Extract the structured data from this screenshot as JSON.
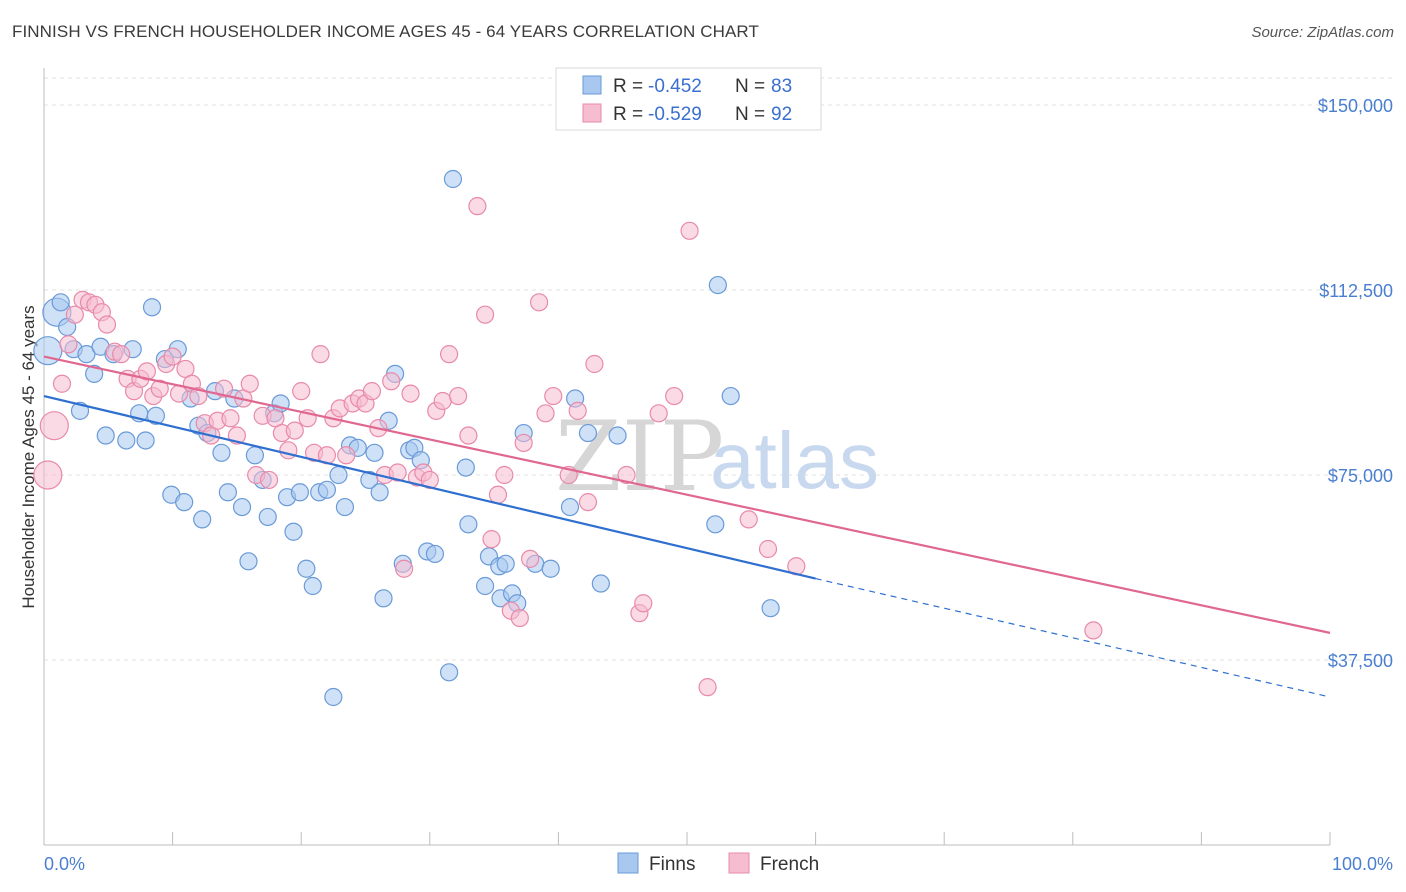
{
  "title": "FINNISH VS FRENCH HOUSEHOLDER INCOME AGES 45 - 64 YEARS CORRELATION CHART",
  "source": "Source: ZipAtlas.com",
  "watermark": {
    "zip": "ZIP",
    "atlas": "atlas"
  },
  "legend": {
    "r_label": "R =",
    "n_label": "N =",
    "rows": [
      {
        "r": "-0.452",
        "n": "83"
      },
      {
        "r": "-0.529",
        "n": "92"
      }
    ]
  },
  "colors": {
    "finns_fill": "#a8c8f0",
    "finns_stroke": "#6a9ad8",
    "finns_line": "#2f6fd0",
    "french_fill": "#f6bcd0",
    "french_stroke": "#e88aaa",
    "french_line": "#e06890",
    "grid": "#e0e0e0",
    "tick_label": "#4a7fd0"
  },
  "chart_data": {
    "type": "scatter",
    "title": "FINNISH VS FRENCH HOUSEHOLDER INCOME AGES 45 - 64 YEARS CORRELATION CHART",
    "xlabel": "",
    "ylabel": "Householder Income Ages 45 - 64 years",
    "xlim": [
      0,
      100
    ],
    "ylim": [
      0,
      157500
    ],
    "x_tick_labels": [
      "0.0%",
      "100.0%"
    ],
    "y_ticks": [
      37500,
      75000,
      112500,
      150000
    ],
    "y_tick_labels": [
      "$37,500",
      "$75,000",
      "$112,500",
      "$150,000"
    ],
    "grid": true,
    "legend_position": "bottom",
    "series": [
      {
        "name": "Finns",
        "r": -0.452,
        "n": 83,
        "trend": {
          "x": [
            0,
            60,
            100
          ],
          "y": [
            91000,
            54000,
            30000
          ],
          "solid_until": 60
        },
        "points": [
          [
            0.3,
            100200
          ],
          [
            1.0,
            108000
          ],
          [
            1.3,
            110000
          ],
          [
            1.8,
            105000
          ],
          [
            2.3,
            100500
          ],
          [
            2.8,
            88000
          ],
          [
            3.3,
            99500
          ],
          [
            3.9,
            95500
          ],
          [
            4.4,
            101000
          ],
          [
            4.8,
            83000
          ],
          [
            5.4,
            99500
          ],
          [
            6.4,
            82000
          ],
          [
            6.9,
            100500
          ],
          [
            7.4,
            87500
          ],
          [
            7.9,
            82000
          ],
          [
            8.4,
            109000
          ],
          [
            8.7,
            87000
          ],
          [
            9.4,
            98500
          ],
          [
            9.9,
            71000
          ],
          [
            10.4,
            100500
          ],
          [
            10.9,
            69500
          ],
          [
            11.4,
            90500
          ],
          [
            12.0,
            85000
          ],
          [
            12.3,
            66000
          ],
          [
            12.7,
            83500
          ],
          [
            13.3,
            92000
          ],
          [
            13.8,
            79500
          ],
          [
            14.3,
            71500
          ],
          [
            14.8,
            90500
          ],
          [
            15.4,
            68500
          ],
          [
            15.9,
            57500
          ],
          [
            16.4,
            79000
          ],
          [
            17.0,
            74000
          ],
          [
            17.4,
            66500
          ],
          [
            17.9,
            87500
          ],
          [
            18.4,
            89500
          ],
          [
            18.9,
            70500
          ],
          [
            19.4,
            63500
          ],
          [
            19.9,
            71500
          ],
          [
            20.4,
            56000
          ],
          [
            20.9,
            52500
          ],
          [
            21.4,
            71500
          ],
          [
            22.0,
            72000
          ],
          [
            22.5,
            30000
          ],
          [
            22.9,
            75000
          ],
          [
            23.4,
            68500
          ],
          [
            23.8,
            81000
          ],
          [
            24.4,
            80500
          ],
          [
            25.3,
            74000
          ],
          [
            25.7,
            79500
          ],
          [
            26.1,
            71500
          ],
          [
            26.4,
            50000
          ],
          [
            26.8,
            86000
          ],
          [
            27.3,
            95500
          ],
          [
            27.9,
            57000
          ],
          [
            28.4,
            80000
          ],
          [
            28.8,
            80500
          ],
          [
            29.3,
            78000
          ],
          [
            29.8,
            59500
          ],
          [
            30.4,
            59000
          ],
          [
            31.5,
            35000
          ],
          [
            31.8,
            135000
          ],
          [
            32.8,
            76500
          ],
          [
            33.0,
            65000
          ],
          [
            34.3,
            52500
          ],
          [
            34.6,
            58500
          ],
          [
            35.4,
            56500
          ],
          [
            35.5,
            50000
          ],
          [
            35.9,
            57000
          ],
          [
            36.4,
            51000
          ],
          [
            36.8,
            49000
          ],
          [
            37.3,
            83500
          ],
          [
            38.2,
            57000
          ],
          [
            39.4,
            56000
          ],
          [
            40.9,
            68500
          ],
          [
            41.3,
            90500
          ],
          [
            42.3,
            83500
          ],
          [
            43.3,
            53000
          ],
          [
            44.6,
            83000
          ],
          [
            52.2,
            65000
          ],
          [
            52.4,
            113500
          ],
          [
            53.4,
            91000
          ],
          [
            56.5,
            48000
          ]
        ]
      },
      {
        "name": "French",
        "r": -0.529,
        "n": 92,
        "trend": {
          "x": [
            0,
            100
          ],
          "y": [
            99000,
            43000
          ],
          "solid_until": 100
        },
        "points": [
          [
            0.3,
            75000
          ],
          [
            0.8,
            85000
          ],
          [
            1.4,
            93500
          ],
          [
            1.9,
            101500
          ],
          [
            2.4,
            107500
          ],
          [
            3.0,
            110500
          ],
          [
            3.5,
            110000
          ],
          [
            4.0,
            109500
          ],
          [
            4.5,
            108000
          ],
          [
            4.9,
            105500
          ],
          [
            5.5,
            100000
          ],
          [
            6.0,
            99500
          ],
          [
            6.5,
            94500
          ],
          [
            7.0,
            92000
          ],
          [
            7.5,
            94500
          ],
          [
            8.0,
            96000
          ],
          [
            8.5,
            91000
          ],
          [
            9.0,
            92500
          ],
          [
            9.5,
            97500
          ],
          [
            10.0,
            99000
          ],
          [
            10.5,
            91500
          ],
          [
            11.0,
            96500
          ],
          [
            11.5,
            93500
          ],
          [
            12.0,
            91000
          ],
          [
            12.5,
            85500
          ],
          [
            13.0,
            83000
          ],
          [
            13.5,
            86000
          ],
          [
            14.0,
            92500
          ],
          [
            14.5,
            86500
          ],
          [
            15.0,
            83000
          ],
          [
            15.5,
            90500
          ],
          [
            16.0,
            93500
          ],
          [
            16.5,
            75000
          ],
          [
            17.0,
            87000
          ],
          [
            17.5,
            74000
          ],
          [
            18.0,
            86500
          ],
          [
            18.5,
            83500
          ],
          [
            19.0,
            80000
          ],
          [
            19.5,
            84000
          ],
          [
            20.0,
            92000
          ],
          [
            20.5,
            86500
          ],
          [
            21.0,
            79500
          ],
          [
            21.5,
            99500
          ],
          [
            22.0,
            79000
          ],
          [
            22.5,
            86500
          ],
          [
            23.0,
            88500
          ],
          [
            23.5,
            79000
          ],
          [
            24.0,
            89500
          ],
          [
            24.5,
            90500
          ],
          [
            25.0,
            89500
          ],
          [
            25.5,
            92000
          ],
          [
            26.0,
            84500
          ],
          [
            26.5,
            75000
          ],
          [
            27.0,
            94000
          ],
          [
            27.5,
            75500
          ],
          [
            28.0,
            56000
          ],
          [
            28.5,
            91500
          ],
          [
            29.0,
            74500
          ],
          [
            29.5,
            75500
          ],
          [
            30.0,
            74000
          ],
          [
            30.5,
            88000
          ],
          [
            31.0,
            90000
          ],
          [
            31.5,
            99500
          ],
          [
            32.2,
            91000
          ],
          [
            33.0,
            83000
          ],
          [
            33.7,
            129500
          ],
          [
            34.3,
            107500
          ],
          [
            34.8,
            62000
          ],
          [
            35.3,
            71000
          ],
          [
            35.8,
            75000
          ],
          [
            36.3,
            47500
          ],
          [
            37.0,
            46000
          ],
          [
            37.3,
            81500
          ],
          [
            37.8,
            58000
          ],
          [
            38.5,
            110000
          ],
          [
            39.0,
            87500
          ],
          [
            39.6,
            91000
          ],
          [
            40.8,
            75000
          ],
          [
            41.5,
            88000
          ],
          [
            42.3,
            69500
          ],
          [
            42.8,
            97500
          ],
          [
            45.3,
            75000
          ],
          [
            46.3,
            47000
          ],
          [
            46.6,
            49000
          ],
          [
            47.8,
            87500
          ],
          [
            49.0,
            91000
          ],
          [
            50.2,
            124500
          ],
          [
            51.6,
            32000
          ],
          [
            54.8,
            66000
          ],
          [
            56.3,
            60000
          ],
          [
            58.5,
            56500
          ],
          [
            81.6,
            43500
          ]
        ]
      }
    ]
  },
  "axis": {
    "ylabel": "Householder Income Ages 45 - 64 years",
    "x_min_label": "0.0%",
    "x_max_label": "100.0%"
  },
  "bottom_legend": {
    "finns": "Finns",
    "french": "French"
  }
}
